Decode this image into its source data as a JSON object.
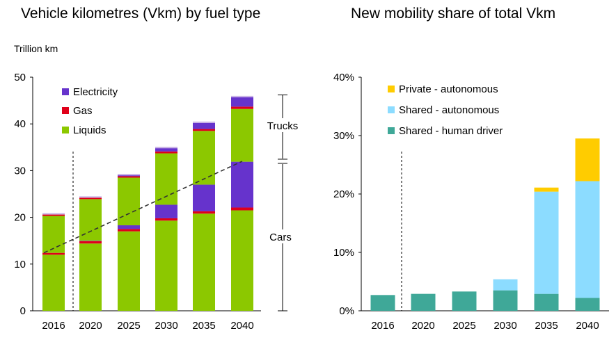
{
  "chart_data": [
    {
      "type": "bar",
      "stacked": true,
      "title": "Vehicle kilometres (Vkm) by fuel type",
      "ylabel": "Trillion km",
      "ylim": [
        0,
        50
      ],
      "yticks": [
        "0",
        "10",
        "20",
        "30",
        "40",
        "50"
      ],
      "yticks_values": [
        0,
        10,
        20,
        30,
        40,
        50
      ],
      "categories": [
        "2016",
        "2020",
        "2025",
        "2030",
        "2035",
        "2040"
      ],
      "series": [
        {
          "name": "Liquids",
          "color": "#8cc800",
          "segments": [
            {
              "values": [
                12.0,
                14.4,
                17.0,
                19.3,
                20.8,
                21.5
              ]
            },
            {
              "values": [
                7.9,
                8.9,
                10.2,
                11.0,
                11.5,
                11.3
              ]
            }
          ]
        },
        {
          "name": "Gas",
          "color": "#e0001a",
          "segments": [
            {
              "values": [
                0.4,
                0.5,
                0.5,
                0.5,
                0.5,
                0.6
              ]
            },
            {
              "values": [
                0.3,
                0.3,
                0.3,
                0.4,
                0.4,
                0.5
              ]
            }
          ]
        },
        {
          "name": "Electricity",
          "color": "#6633cc",
          "segments": [
            {
              "values": [
                0.0,
                0.1,
                0.8,
                2.9,
                5.7,
                9.8
              ]
            },
            {
              "values": [
                0.0,
                0.0,
                0.2,
                0.7,
                1.3,
                2.0
              ]
            }
          ]
        }
      ],
      "top_cap": {
        "color": "#c9b3e6",
        "values": [
          0.3,
          0.3,
          0.3,
          0.3,
          0.3,
          0.3
        ]
      },
      "legend": [
        "Electricity",
        "Gas",
        "Liquids"
      ],
      "legend_position": "top-left",
      "trend_line": {
        "style": "dashed",
        "from": {
          "x": "2016",
          "y": 12.4
        },
        "to": {
          "x": "2040",
          "y": 32.0
        }
      },
      "divider_after": "2016",
      "bracket_annotations": [
        {
          "label": "Trucks",
          "from": 32.0,
          "to": 46.2
        },
        {
          "label": "Cars",
          "from": 0,
          "to": 32.0
        }
      ]
    },
    {
      "type": "bar",
      "stacked": true,
      "title": "New mobility share of total Vkm",
      "ylim": [
        0,
        40
      ],
      "yticks": [
        "0%",
        "10%",
        "20%",
        "30%",
        "40%"
      ],
      "yticks_values": [
        0,
        10,
        20,
        30,
        40
      ],
      "categories": [
        "2016",
        "2020",
        "2025",
        "2030",
        "2035",
        "2040"
      ],
      "series": [
        {
          "name": "Shared - human driver",
          "color": "#3fa898",
          "values": [
            2.7,
            2.9,
            3.3,
            3.5,
            2.9,
            2.2
          ]
        },
        {
          "name": "Shared - autonomous",
          "color": "#8cdcff",
          "values": [
            0.0,
            0.0,
            0.0,
            1.9,
            17.5,
            20.0
          ]
        },
        {
          "name": "Private - autonomous",
          "color": "#ffcc00",
          "values": [
            0.0,
            0.0,
            0.0,
            0.0,
            0.7,
            7.3
          ]
        }
      ],
      "legend": [
        "Private - autonomous",
        "Shared - autonomous",
        "Shared - human driver"
      ],
      "legend_position": "top-left",
      "divider_after": "2016"
    }
  ]
}
